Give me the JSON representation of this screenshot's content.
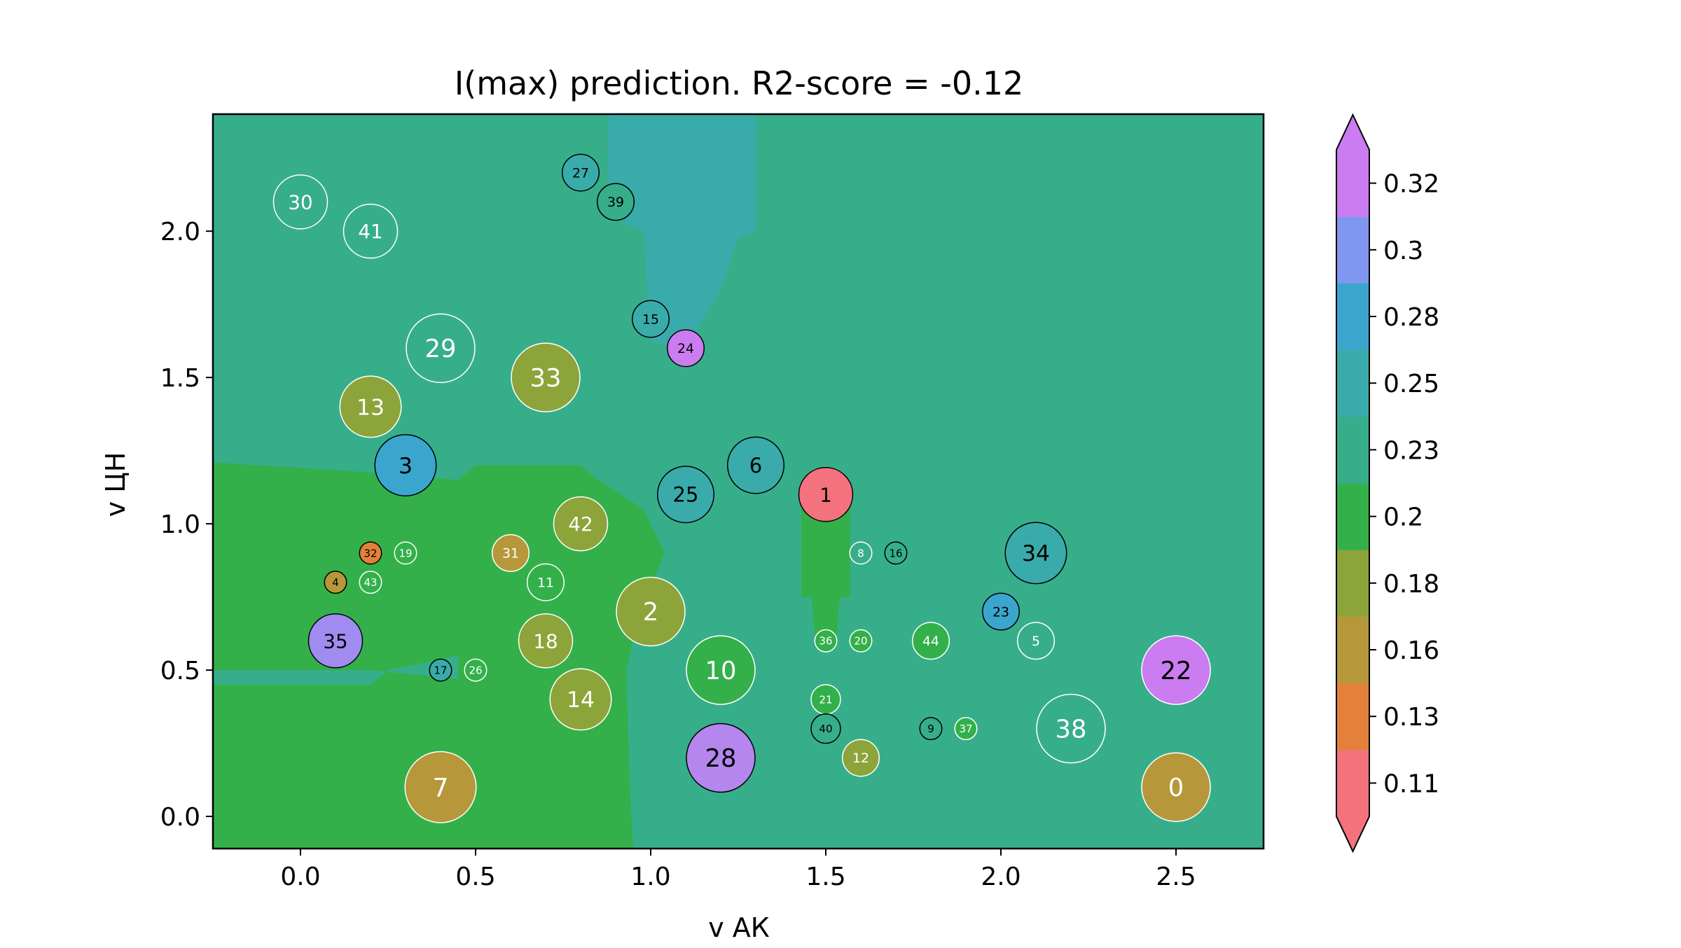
{
  "chart_data": {
    "type": "scatter",
    "title": "I(max) prediction. R2-score = -0.12",
    "xlabel": "v АК",
    "ylabel": "v ЦН",
    "xlim": [
      -0.25,
      2.75
    ],
    "ylim": [
      -0.11,
      2.4
    ],
    "x_ticks": [
      "0.0",
      "0.5",
      "1.0",
      "1.5",
      "2.0",
      "2.5"
    ],
    "x_tick_values": [
      0,
      0.5,
      1.0,
      1.5,
      2.0,
      2.5
    ],
    "y_ticks": [
      "0.0",
      "0.5",
      "1.0",
      "1.5",
      "2.0"
    ],
    "y_tick_values": [
      0,
      0.5,
      1.0,
      1.5,
      2.0
    ],
    "grid": false,
    "colorbar": {
      "ticks": [
        "0.11",
        "0.13",
        "0.16",
        "0.18",
        "0.2",
        "0.23",
        "0.25",
        "0.28",
        "0.3",
        "0.32"
      ],
      "colors": [
        "#f4727d",
        "#e5803a",
        "#b6983a",
        "#8da43a",
        "#33b04a",
        "#37ae8a",
        "#39abaa",
        "#3aa6ce",
        "#7f97f0",
        "#cb7cf0"
      ],
      "extend": "both"
    },
    "background_regions": [
      {
        "level": 0.23,
        "color": "#37ae8a",
        "polygon": [
          [
            -0.25,
            -0.11
          ],
          [
            2.75,
            -0.11
          ],
          [
            2.75,
            2.4
          ],
          [
            -0.25,
            2.4
          ]
        ]
      },
      {
        "level": 0.25,
        "color": "#39abaa",
        "polygon": [
          [
            0.88,
            2.4
          ],
          [
            1.3,
            2.4
          ],
          [
            1.3,
            2.0
          ],
          [
            1.25,
            1.98
          ],
          [
            1.2,
            1.8
          ],
          [
            1.1,
            1.6
          ],
          [
            1.0,
            1.62
          ],
          [
            0.98,
            2.0
          ],
          [
            0.88,
            2.05
          ]
        ]
      },
      {
        "level": 0.2,
        "color": "#33b04a",
        "polygon": [
          [
            -0.25,
            -0.11
          ],
          [
            0.95,
            -0.11
          ],
          [
            0.94,
            0.12
          ],
          [
            0.93,
            0.5
          ],
          [
            0.97,
            0.7
          ],
          [
            1.04,
            0.9
          ],
          [
            0.98,
            1.05
          ],
          [
            0.85,
            1.15
          ],
          [
            0.8,
            1.2
          ],
          [
            0.5,
            1.2
          ],
          [
            0.45,
            1.15
          ],
          [
            0.15,
            1.18
          ],
          [
            -0.25,
            1.21
          ]
        ]
      },
      {
        "level": 0.23,
        "color": "#37ae8a",
        "polygon": [
          [
            -0.25,
            0.45
          ],
          [
            0.2,
            0.45
          ],
          [
            0.25,
            0.5
          ],
          [
            0.45,
            0.55
          ],
          [
            0.45,
            0.47
          ],
          [
            0.2,
            0.5
          ],
          [
            -0.25,
            0.5
          ]
        ]
      },
      {
        "level": 0.2,
        "color": "#33b04a",
        "polygon": [
          [
            1.43,
            1.05
          ],
          [
            1.57,
            1.05
          ],
          [
            1.57,
            0.75
          ],
          [
            1.54,
            0.75
          ],
          [
            1.53,
            0.6
          ],
          [
            1.47,
            0.6
          ],
          [
            1.46,
            0.75
          ],
          [
            1.43,
            0.75
          ]
        ]
      }
    ],
    "points": [
      {
        "id": "0",
        "x": 2.5,
        "y": 0.1,
        "r": 2.8,
        "fill": "#b6983a",
        "stroke": "#ffffff",
        "text_color": "#ffffff"
      },
      {
        "id": "1",
        "x": 1.5,
        "y": 1.1,
        "r": 2.2,
        "fill": "#f4727d",
        "stroke": "#000000",
        "text_color": "#000000"
      },
      {
        "id": "2",
        "x": 1.0,
        "y": 0.7,
        "r": 2.8,
        "fill": "#8da43a",
        "stroke": "#ffffff",
        "text_color": "#ffffff"
      },
      {
        "id": "3",
        "x": 0.3,
        "y": 1.2,
        "r": 2.5,
        "fill": "#3aa6ce",
        "stroke": "#000000",
        "text_color": "#000000"
      },
      {
        "id": "4",
        "x": 0.1,
        "y": 0.8,
        "r": 0.9,
        "fill": "#b6983a",
        "stroke": "#000000",
        "text_color": "#000000"
      },
      {
        "id": "5",
        "x": 2.1,
        "y": 0.6,
        "r": 1.5,
        "fill": "#37ae8a",
        "stroke": "#ffffff",
        "text_color": "#ffffff"
      },
      {
        "id": "6",
        "x": 1.3,
        "y": 1.2,
        "r": 2.3,
        "fill": "#39abaa",
        "stroke": "#000000",
        "text_color": "#000000"
      },
      {
        "id": "7",
        "x": 0.4,
        "y": 0.1,
        "r": 2.9,
        "fill": "#b6983a",
        "stroke": "#ffffff",
        "text_color": "#ffffff"
      },
      {
        "id": "8",
        "x": 1.6,
        "y": 0.9,
        "r": 0.9,
        "fill": "#37ae8a",
        "stroke": "#ffffff",
        "text_color": "#ffffff"
      },
      {
        "id": "9",
        "x": 1.8,
        "y": 0.3,
        "r": 0.9,
        "fill": "#37ae8a",
        "stroke": "#000000",
        "text_color": "#000000"
      },
      {
        "id": "10",
        "x": 1.2,
        "y": 0.5,
        "r": 2.8,
        "fill": "#33b04a",
        "stroke": "#ffffff",
        "text_color": "#ffffff"
      },
      {
        "id": "11",
        "x": 0.7,
        "y": 0.8,
        "r": 1.5,
        "fill": "#33b04a",
        "stroke": "#ffffff",
        "text_color": "#ffffff"
      },
      {
        "id": "12",
        "x": 1.6,
        "y": 0.2,
        "r": 1.5,
        "fill": "#8da43a",
        "stroke": "#ffffff",
        "text_color": "#ffffff"
      },
      {
        "id": "13",
        "x": 0.2,
        "y": 1.4,
        "r": 2.5,
        "fill": "#8da43a",
        "stroke": "#ffffff",
        "text_color": "#ffffff"
      },
      {
        "id": "14",
        "x": 0.8,
        "y": 0.4,
        "r": 2.5,
        "fill": "#8da43a",
        "stroke": "#ffffff",
        "text_color": "#ffffff"
      },
      {
        "id": "15",
        "x": 1.0,
        "y": 1.7,
        "r": 1.5,
        "fill": "#39abaa",
        "stroke": "#000000",
        "text_color": "#000000"
      },
      {
        "id": "16",
        "x": 1.7,
        "y": 0.9,
        "r": 0.9,
        "fill": "#37ae8a",
        "stroke": "#000000",
        "text_color": "#000000"
      },
      {
        "id": "17",
        "x": 0.4,
        "y": 0.5,
        "r": 0.9,
        "fill": "#39abaa",
        "stroke": "#000000",
        "text_color": "#000000"
      },
      {
        "id": "18",
        "x": 0.7,
        "y": 0.6,
        "r": 2.2,
        "fill": "#8da43a",
        "stroke": "#ffffff",
        "text_color": "#ffffff"
      },
      {
        "id": "19",
        "x": 0.3,
        "y": 0.9,
        "r": 0.9,
        "fill": "#33b04a",
        "stroke": "#ffffff",
        "text_color": "#ffffff"
      },
      {
        "id": "20",
        "x": 1.6,
        "y": 0.6,
        "r": 0.9,
        "fill": "#33b04a",
        "stroke": "#ffffff",
        "text_color": "#ffffff"
      },
      {
        "id": "21",
        "x": 1.5,
        "y": 0.4,
        "r": 1.2,
        "fill": "#33b04a",
        "stroke": "#ffffff",
        "text_color": "#ffffff"
      },
      {
        "id": "22",
        "x": 2.5,
        "y": 0.5,
        "r": 2.8,
        "fill": "#cb7cf0",
        "stroke": "#ffffff",
        "text_color": "#000000"
      },
      {
        "id": "23",
        "x": 2.0,
        "y": 0.7,
        "r": 1.5,
        "fill": "#3aa6ce",
        "stroke": "#000000",
        "text_color": "#000000"
      },
      {
        "id": "24",
        "x": 1.1,
        "y": 1.6,
        "r": 1.5,
        "fill": "#cb7cf0",
        "stroke": "#000000",
        "text_color": "#000000"
      },
      {
        "id": "25",
        "x": 1.1,
        "y": 1.1,
        "r": 2.3,
        "fill": "#39abaa",
        "stroke": "#000000",
        "text_color": "#000000"
      },
      {
        "id": "26",
        "x": 0.5,
        "y": 0.5,
        "r": 0.9,
        "fill": "#33b04a",
        "stroke": "#ffffff",
        "text_color": "#ffffff"
      },
      {
        "id": "27",
        "x": 0.8,
        "y": 2.2,
        "r": 1.5,
        "fill": "#39abaa",
        "stroke": "#000000",
        "text_color": "#000000"
      },
      {
        "id": "28",
        "x": 1.2,
        "y": 0.2,
        "r": 2.8,
        "fill": "#b486ee",
        "stroke": "#000000",
        "text_color": "#000000"
      },
      {
        "id": "29",
        "x": 0.4,
        "y": 1.6,
        "r": 2.8,
        "fill": "#37ae8a",
        "stroke": "#ffffff",
        "text_color": "#ffffff"
      },
      {
        "id": "30",
        "x": 0.0,
        "y": 2.1,
        "r": 2.2,
        "fill": "#37ae8a",
        "stroke": "#ffffff",
        "text_color": "#ffffff"
      },
      {
        "id": "31",
        "x": 0.6,
        "y": 0.9,
        "r": 1.5,
        "fill": "#b6983a",
        "stroke": "#ffffff",
        "text_color": "#ffffff"
      },
      {
        "id": "32",
        "x": 0.2,
        "y": 0.9,
        "r": 0.9,
        "fill": "#e5803a",
        "stroke": "#000000",
        "text_color": "#000000"
      },
      {
        "id": "33",
        "x": 0.7,
        "y": 1.5,
        "r": 2.8,
        "fill": "#8da43a",
        "stroke": "#ffffff",
        "text_color": "#ffffff"
      },
      {
        "id": "34",
        "x": 2.1,
        "y": 0.9,
        "r": 2.5,
        "fill": "#39abaa",
        "stroke": "#000000",
        "text_color": "#000000"
      },
      {
        "id": "35",
        "x": 0.1,
        "y": 0.6,
        "r": 2.2,
        "fill": "#a08bf0",
        "stroke": "#000000",
        "text_color": "#000000"
      },
      {
        "id": "36",
        "x": 1.5,
        "y": 0.6,
        "r": 0.9,
        "fill": "#33b04a",
        "stroke": "#ffffff",
        "text_color": "#ffffff"
      },
      {
        "id": "37",
        "x": 1.9,
        "y": 0.3,
        "r": 0.9,
        "fill": "#33b04a",
        "stroke": "#ffffff",
        "text_color": "#ffffff"
      },
      {
        "id": "38",
        "x": 2.2,
        "y": 0.3,
        "r": 2.8,
        "fill": "#37ae8a",
        "stroke": "#ffffff",
        "text_color": "#ffffff"
      },
      {
        "id": "39",
        "x": 0.9,
        "y": 2.1,
        "r": 1.5,
        "fill": "#37ae8a",
        "stroke": "#000000",
        "text_color": "#000000"
      },
      {
        "id": "40",
        "x": 1.5,
        "y": 0.3,
        "r": 1.2,
        "fill": "#37ae8a",
        "stroke": "#000000",
        "text_color": "#000000"
      },
      {
        "id": "41",
        "x": 0.2,
        "y": 2.0,
        "r": 2.2,
        "fill": "#37ae8a",
        "stroke": "#ffffff",
        "text_color": "#ffffff"
      },
      {
        "id": "42",
        "x": 0.8,
        "y": 1.0,
        "r": 2.2,
        "fill": "#8da43a",
        "stroke": "#ffffff",
        "text_color": "#ffffff"
      },
      {
        "id": "43",
        "x": 0.2,
        "y": 0.8,
        "r": 0.9,
        "fill": "#33b04a",
        "stroke": "#ffffff",
        "text_color": "#ffffff"
      },
      {
        "id": "44",
        "x": 1.8,
        "y": 0.6,
        "r": 1.5,
        "fill": "#33b04a",
        "stroke": "#ffffff",
        "text_color": "#ffffff"
      }
    ]
  }
}
